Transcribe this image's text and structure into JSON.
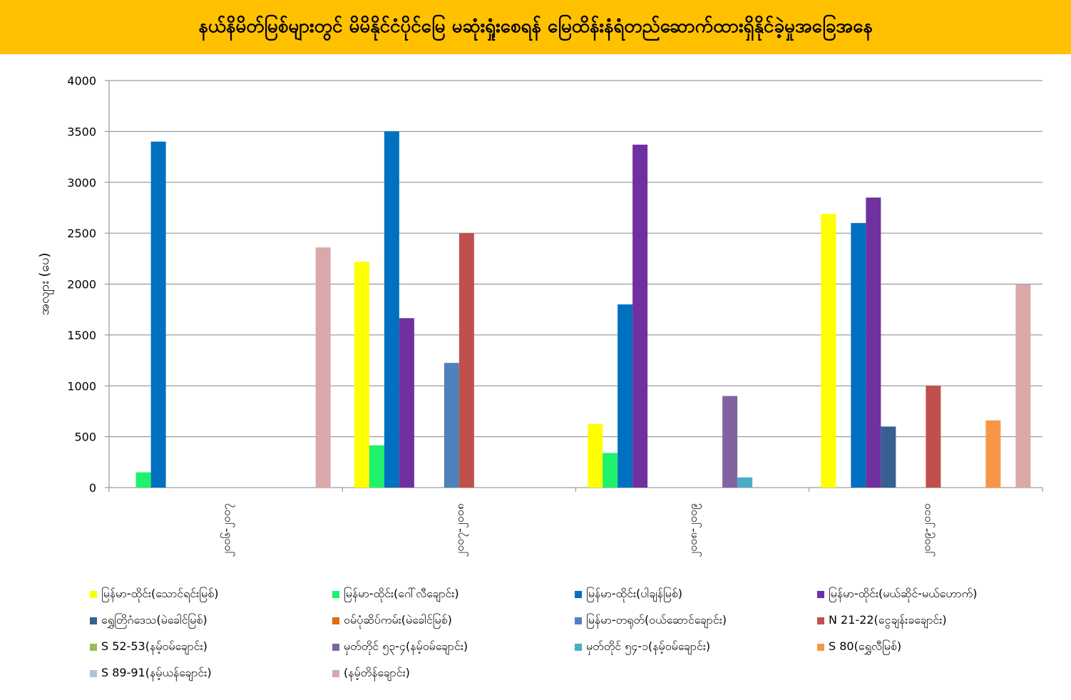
{
  "title": "နယ်နိမိတ်မြစ်များတွင် မိမိနိုင်ငံပိုင်မြေ မဆုံးရှုံးစေရန် မြေထိန်းနံရံတည်ဆောက်ထားရှိနိုင်ခဲ့မှုအခြေအနေ",
  "chart_data": {
    "type": "bar",
    "title": "နယ်နိမိတ်မြစ်များတွင် မိမိနိုင်ငံပိုင်မြေ မဆုံးရှုံးစေရန် မြေထိန်းနံရံတည်ဆောက်ထားရှိနိုင်ခဲ့မှုအခြေအနေ",
    "xlabel": "",
    "ylabel": "အလျား (ပေ)",
    "ylim": [
      0,
      4000
    ],
    "yticks": [
      0,
      500,
      1000,
      1500,
      2000,
      2500,
      3000,
      3500,
      4000
    ],
    "grid": true,
    "legend_position": "bottom",
    "categories": [
      "၂၀၀၆-၂၀၀၇",
      "၂၀၀၇-၂၀၀၈",
      "၂၀၀၈-၂၀၀၉",
      "၂၀၀၉-၂၀၁၀"
    ],
    "series": [
      {
        "name": "မြန်မာ-ထိုင်း(သောင်ရင်းမြစ်)",
        "color": "#ffff00",
        "values": [
          0,
          2220,
          625,
          2690
        ]
      },
      {
        "name": "မြန်မာ-ထိုင်း(ဂေါ်လီချောင်း)",
        "color": "#1ef26a",
        "values": [
          150,
          415,
          340,
          0
        ]
      },
      {
        "name": "မြန်မာ-ထိုင်း(ပါချန်မြစ်)",
        "color": "#0070c0",
        "values": [
          3400,
          3500,
          1800,
          2600
        ]
      },
      {
        "name": "မြန်မာ-ထိုင်း(မယ်ဆိုင်-မယ်ဟောက်)",
        "color": "#7030a0",
        "values": [
          0,
          1665,
          3370,
          2850
        ]
      },
      {
        "name": "ရွှေတြိဂံဒေသ(မဲခေါင်မြစ်)",
        "color": "#376092",
        "values": [
          0,
          0,
          0,
          600
        ]
      },
      {
        "name": "ဝမ်ပုံဆိပ်ကမ်း(မဲခေါင်မြစ်)",
        "color": "#e46c0a",
        "values": [
          0,
          0,
          0,
          0
        ]
      },
      {
        "name": "မြန်မာ-တရုတ်(ဝယ်ဆောင်ချောင်း)",
        "color": "#4f81bd",
        "values": [
          0,
          1225,
          0,
          0
        ]
      },
      {
        "name": "N 21-22(ငွေချန်းခချောင်း)",
        "color": "#c0504d",
        "values": [
          0,
          2500,
          0,
          1000
        ]
      },
      {
        "name": "S 52-53(နမ့်ဝမ်ချောင်း)",
        "color": "#9bbb59",
        "values": [
          0,
          0,
          0,
          0
        ]
      },
      {
        "name": "မှတ်တိုင် ၅၃-၄(နမ့်ဝမ်ချောင်း)",
        "color": "#8064a2",
        "values": [
          0,
          0,
          900,
          0
        ]
      },
      {
        "name": "မှတ်တိုင် ၅၄-၁(နမ့်ဝမ်ချောင်း)",
        "color": "#4bacc6",
        "values": [
          0,
          0,
          100,
          0
        ]
      },
      {
        "name": "S 80(ရွှေလီမြစ်)",
        "color": "#f79646",
        "values": [
          0,
          0,
          0,
          660
        ]
      },
      {
        "name": "S 89-91(နမ့်ယန်ချောင်း)",
        "color": "#b3bfde",
        "values": [
          0,
          0,
          0,
          0
        ]
      },
      {
        "name": "(နမ့်တိန်ချောင်း)",
        "color": "#d9a8a8",
        "values": [
          2360,
          0,
          0,
          2000
        ]
      }
    ]
  }
}
